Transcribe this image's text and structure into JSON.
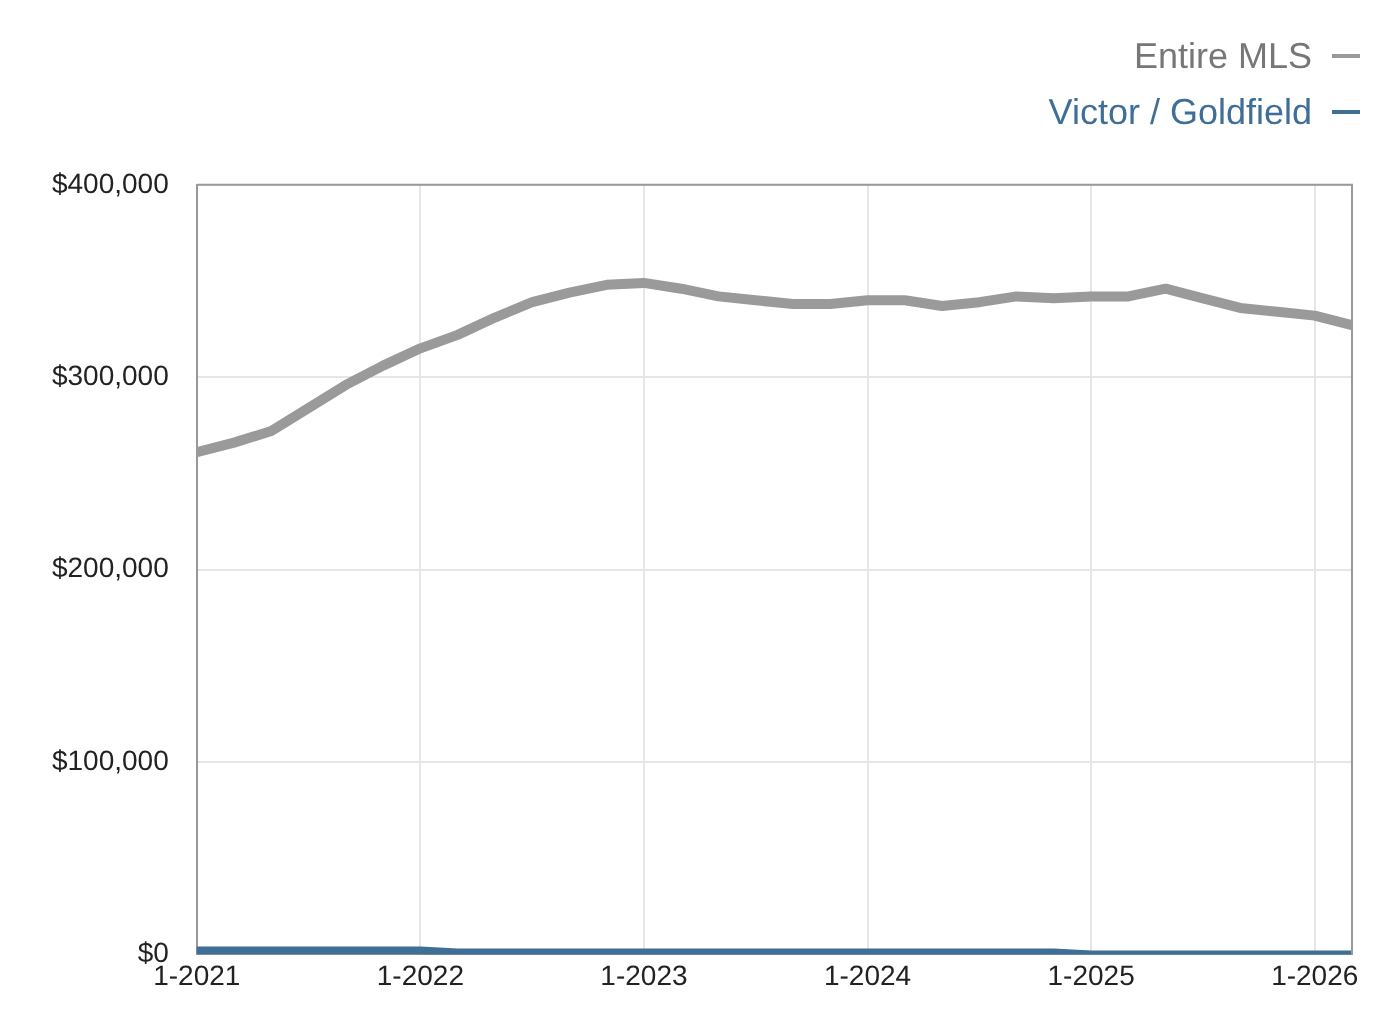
{
  "chart_data": {
    "type": "line",
    "x": [
      "2021-01",
      "2021-03",
      "2021-05",
      "2021-07",
      "2021-09",
      "2021-11",
      "2022-01",
      "2022-03",
      "2022-05",
      "2022-07",
      "2022-09",
      "2022-11",
      "2023-01",
      "2023-03",
      "2023-05",
      "2023-07",
      "2023-09",
      "2023-11",
      "2024-01",
      "2024-03",
      "2024-05",
      "2024-07",
      "2024-09",
      "2024-11",
      "2025-01",
      "2025-03",
      "2025-05",
      "2025-07",
      "2025-09",
      "2025-11",
      "2026-01",
      "2026-03"
    ],
    "series": [
      {
        "name": "Entire MLS",
        "color": "#9a9a9a",
        "values": [
          261000,
          266000,
          272000,
          284000,
          296000,
          306000,
          315000,
          322000,
          331000,
          339000,
          344000,
          348000,
          349000,
          346000,
          342000,
          340000,
          338000,
          338000,
          340000,
          340000,
          337000,
          339000,
          342000,
          341000,
          342000,
          342000,
          346000,
          341000,
          336000,
          334000,
          332000,
          327000
        ]
      },
      {
        "name": "Victor / Goldfield",
        "color": "#3f6e96",
        "values": [
          2000,
          2000,
          2000,
          2000,
          2000,
          2000,
          2000,
          1000,
          1000,
          1000,
          1000,
          1000,
          1000,
          1000,
          1000,
          1000,
          1000,
          1000,
          1000,
          1000,
          1000,
          1000,
          1000,
          1000,
          0,
          0,
          0,
          0,
          0,
          0,
          0,
          0
        ]
      }
    ],
    "xlim": [
      "2021-01",
      "2026-03"
    ],
    "xticks": [
      {
        "value": "2021-01",
        "label": "1-2021"
      },
      {
        "value": "2022-01",
        "label": "1-2022"
      },
      {
        "value": "2023-01",
        "label": "1-2023"
      },
      {
        "value": "2024-01",
        "label": "1-2024"
      },
      {
        "value": "2025-01",
        "label": "1-2025"
      },
      {
        "value": "2026-01",
        "label": "1-2026"
      }
    ],
    "ylim": [
      0,
      400000
    ],
    "yticks": [
      {
        "value": 0,
        "label": "$0"
      },
      {
        "value": 100000,
        "label": "$100,000"
      },
      {
        "value": 200000,
        "label": "$200,000"
      },
      {
        "value": 300000,
        "label": "$300,000"
      },
      {
        "value": 400000,
        "label": "$400,000"
      }
    ],
    "grid": true,
    "legend": "top right",
    "marker": "none",
    "line_style": "solid"
  }
}
